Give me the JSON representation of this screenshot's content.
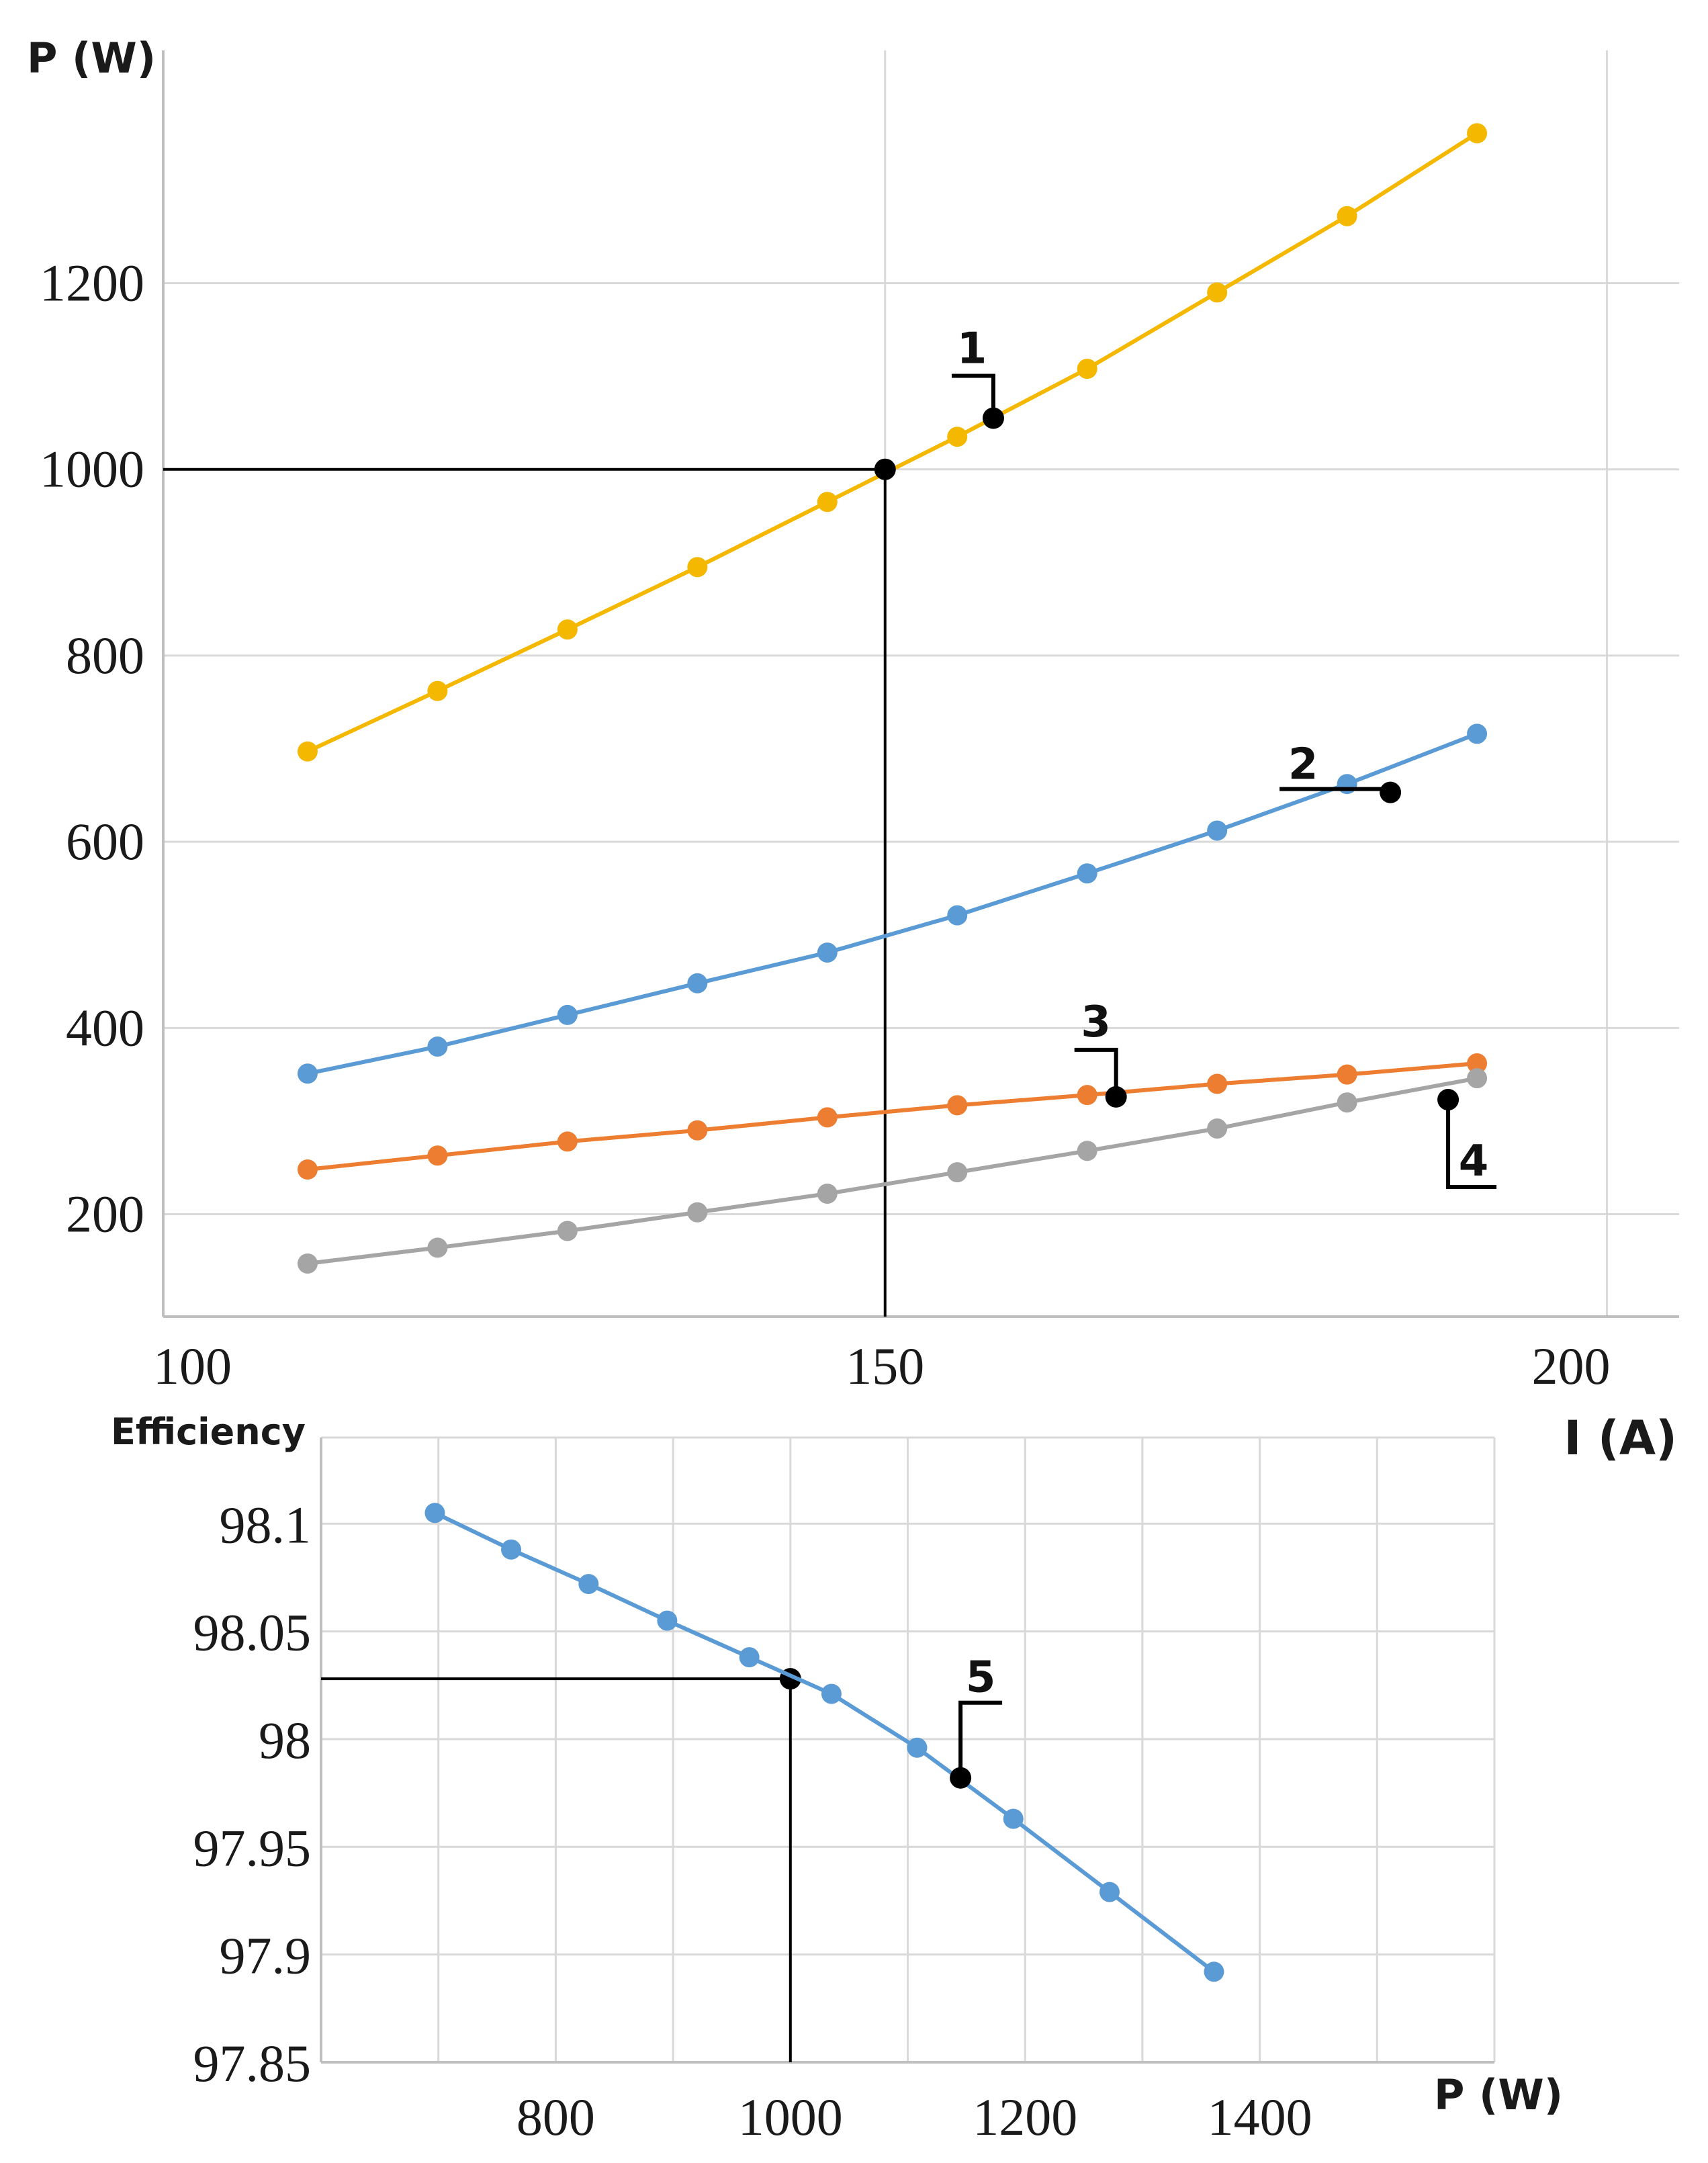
{
  "chart_data": [
    {
      "type": "line",
      "id": "power-vs-current",
      "xlabel": "I (A)",
      "ylabel": "P (W)",
      "xlim": [
        100,
        205
      ],
      "ylim": [
        90,
        1450
      ],
      "xticks": [
        100,
        150,
        200
      ],
      "yticks": [
        200,
        400,
        600,
        800,
        1000,
        1200
      ],
      "grid": true,
      "x": [
        110,
        119,
        128,
        137,
        146,
        155,
        164,
        173,
        182,
        191
      ],
      "series": [
        {
          "name": "1",
          "color": "#f5b800",
          "values": [
            697,
            762,
            828,
            895,
            965,
            1035,
            1108,
            1190,
            1272,
            1361
          ]
        },
        {
          "name": "2",
          "color": "#5b9bd5",
          "values": [
            351,
            380,
            414,
            448,
            481,
            521,
            566,
            612,
            662,
            716
          ]
        },
        {
          "name": "3",
          "color": "#ed7d31",
          "values": [
            248,
            263,
            278,
            290,
            304,
            317,
            328,
            340,
            350,
            362
          ]
        },
        {
          "name": "4",
          "color": "#a5a5a5",
          "values": [
            147,
            164,
            182,
            202,
            222,
            245,
            268,
            292,
            320,
            346
          ]
        }
      ],
      "markers": [
        {
          "label": "1",
          "x": 157.5,
          "y": 1055
        },
        {
          "label": "2",
          "x": 185,
          "y": 653
        },
        {
          "label": "3",
          "x": 166,
          "y": 326
        },
        {
          "label": "4",
          "x": 189,
          "y": 323
        }
      ],
      "operating_point": {
        "x": 150,
        "y": 1000
      }
    },
    {
      "type": "line",
      "id": "efficiency-vs-power",
      "xlabel": "P (W)",
      "ylabel": "Efficiency",
      "xlim": [
        600,
        1600
      ],
      "ylim": [
        97.85,
        98.14
      ],
      "xticks": [
        800,
        1000,
        1200,
        1400
      ],
      "yticks": [
        97.85,
        97.9,
        97.95,
        98,
        98.05,
        98.1
      ],
      "ytick_labels": [
        "97.85",
        "97.9",
        "97.95",
        "98",
        "98.05",
        "98.1"
      ],
      "grid": true,
      "series": [
        {
          "name": "Efficiency",
          "color": "#5b9bd5",
          "x": [
            697,
            762,
            828,
            895,
            965,
            1035,
            1108,
            1190,
            1272,
            1361
          ],
          "values": [
            98.105,
            98.088,
            98.072,
            98.055,
            98.038,
            98.021,
            97.996,
            97.963,
            97.929,
            97.892
          ]
        }
      ],
      "markers": [
        {
          "label": "5",
          "x": 1145,
          "y": 97.982
        }
      ],
      "operating_point": {
        "x": 1000,
        "y": 98.028
      }
    }
  ]
}
